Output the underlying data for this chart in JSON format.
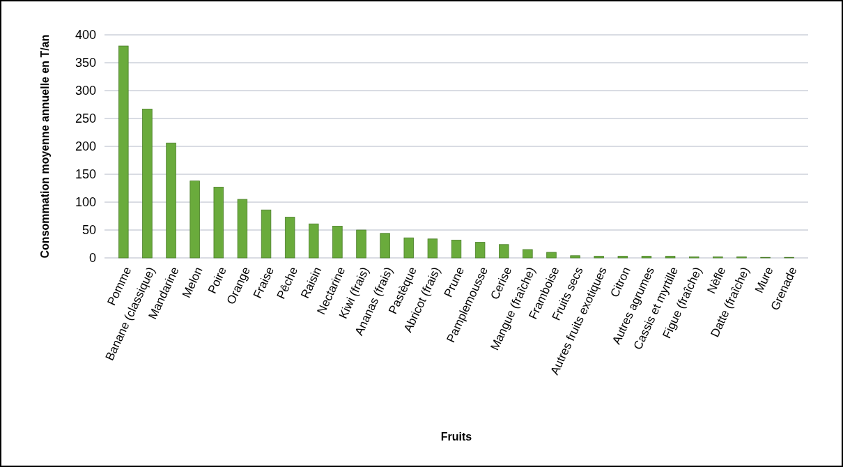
{
  "chart_data": {
    "type": "bar",
    "xlabel": "Fruits",
    "ylabel": "Consommation moyenne annuelle en T/an",
    "categories": [
      "Pomme",
      "Banane (classique)",
      "Mandarine",
      "Melon",
      "Poire",
      "Orange",
      "Fraise",
      "Pêche",
      "Raisin",
      "Nectarine",
      "Kiwi (frais)",
      "Ananas (frais)",
      "Pastèque",
      "Abricot (frais)",
      "Prune",
      "Pamplemousse",
      "Cerise",
      "Mangue (fraîche)",
      "Framboise",
      "Fruits secs",
      "Autres fruits exotiques",
      "Citron",
      "Autres agrumes",
      "Cassis et myrtille",
      "Figue (fraîche)",
      "Nèfle",
      "Datte (fraîche)",
      "Mure",
      "Grenade"
    ],
    "values": [
      380,
      267,
      206,
      138,
      127,
      105,
      86,
      73,
      61,
      57,
      50,
      44,
      36,
      34,
      32,
      28,
      24,
      15,
      10,
      4,
      3,
      3,
      3,
      3,
      2,
      2,
      2,
      1,
      1
    ],
    "color": "#6aab3c",
    "ylim": [
      0,
      400
    ],
    "yticks": [
      0,
      50,
      100,
      150,
      200,
      250,
      300,
      350,
      400
    ],
    "grid": "y"
  }
}
